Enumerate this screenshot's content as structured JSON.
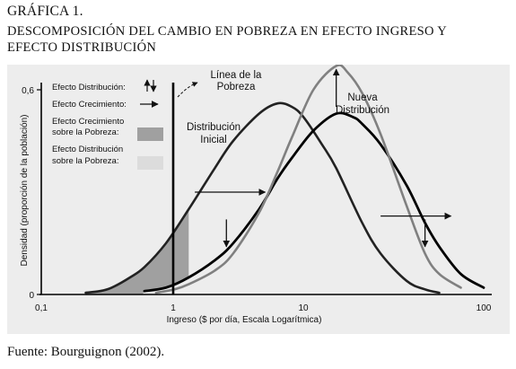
{
  "figure": {
    "label": "GRÁFICA 1.",
    "title_line1": "DESCOMPOSICIÓN DEL CAMBIO EN POBREZA EN EFECTO INGRESO Y",
    "title_line2": "EFECTO DISTRIBUCIÓN",
    "source": "Fuente: Bourguignon (2002)."
  },
  "chart_data": {
    "type": "line",
    "xlabel": "Ingreso ($ por día, Escala Logarítmica)",
    "ylabel": "Densidad (proporción de la población)",
    "x_scale": "log",
    "xlim": [
      0.1,
      100
    ],
    "ylim": [
      0,
      0.6
    ],
    "x_ticks": [
      "0,1",
      "1",
      "10",
      "100"
    ],
    "x_tick_values": [
      0.1,
      1,
      10,
      100
    ],
    "y_ticks": [
      "0",
      "0,6"
    ],
    "y_tick_values": [
      0,
      0.6
    ],
    "poverty_line": {
      "x": 1,
      "label_line1": "Línea de la",
      "label_line2": "Pobreza"
    },
    "series": [
      {
        "name": "Distribución Inicial",
        "label_line1": "Distribución",
        "label_line2": "Inicial",
        "color": "#222222",
        "x": [
          0.2,
          0.25,
          0.3,
          0.4,
          0.5,
          0.7,
          1,
          1.5,
          2,
          3,
          4,
          5,
          6,
          8,
          10,
          15,
          20,
          30,
          40,
          50
        ],
        "y": [
          0.005,
          0.01,
          0.02,
          0.05,
          0.08,
          0.15,
          0.25,
          0.37,
          0.45,
          0.53,
          0.56,
          0.55,
          0.52,
          0.44,
          0.37,
          0.21,
          0.12,
          0.04,
          0.015,
          0.005
        ]
      },
      {
        "name": "Efecto Crecimiento",
        "color": "#000000",
        "x": [
          0.5,
          0.7,
          1,
          1.5,
          2,
          3,
          4,
          5,
          7,
          10,
          13,
          15,
          20,
          30,
          40,
          50,
          70,
          100
        ],
        "y": [
          0.01,
          0.02,
          0.05,
          0.1,
          0.15,
          0.25,
          0.34,
          0.4,
          0.48,
          0.53,
          0.52,
          0.5,
          0.44,
          0.32,
          0.21,
          0.14,
          0.06,
          0.02
        ]
      },
      {
        "name": "Nueva Distribución",
        "label_line1": "Nueva",
        "label_line2": "Distribución",
        "color": "#808080",
        "x": [
          0.6,
          0.8,
          1,
          1.5,
          2,
          3,
          4,
          5,
          7,
          10,
          12,
          15,
          20,
          30,
          40,
          50,
          70
        ],
        "y": [
          0.005,
          0.015,
          0.03,
          0.07,
          0.12,
          0.24,
          0.36,
          0.46,
          0.6,
          0.67,
          0.65,
          0.59,
          0.47,
          0.26,
          0.12,
          0.06,
          0.02
        ]
      }
    ],
    "legend": [
      {
        "label": "Efecto Distribución:",
        "symbol": "vertical-arrows"
      },
      {
        "label": "Efecto Crecimiento:",
        "symbol": "right-arrow"
      },
      {
        "label_line1": "Efecto Crecimiento",
        "label_line2": "sobre la Pobreza:",
        "symbol": "swatch",
        "color": "#a0a0a0"
      },
      {
        "label_line1": "Efecto Distribución",
        "label_line2": "sobre la Pobreza:",
        "symbol": "swatch",
        "color": "#dcdcdc"
      }
    ],
    "legend_position": "top-left",
    "growth_arrows": [
      {
        "from_x": 1.1,
        "to_x": 3.3,
        "y": 0.3
      },
      {
        "from_x": 20,
        "to_x": 60,
        "y": 0.23
      }
    ],
    "distribution_arrows": [
      {
        "x": 1.8,
        "from_y": 0.22,
        "to_y": 0.14
      },
      {
        "x": 10,
        "from_y": 0.55,
        "to_y": 0.66
      },
      {
        "x": 40,
        "from_y": 0.22,
        "to_y": 0.14
      }
    ],
    "growth_effect_area": {
      "curves": [
        "Distribución Inicial",
        "Efecto Crecimiento"
      ],
      "x_max": 1,
      "color": "#a0a0a0"
    },
    "grid": false,
    "axis_color": "#000000"
  }
}
